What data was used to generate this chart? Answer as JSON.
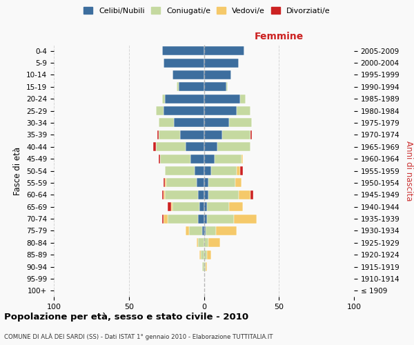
{
  "age_groups": [
    "100+",
    "95-99",
    "90-94",
    "85-89",
    "80-84",
    "75-79",
    "70-74",
    "65-69",
    "60-64",
    "55-59",
    "50-54",
    "45-49",
    "40-44",
    "35-39",
    "30-34",
    "25-29",
    "20-24",
    "15-19",
    "10-14",
    "5-9",
    "0-4"
  ],
  "birth_years": [
    "≤ 1909",
    "1910-1914",
    "1915-1919",
    "1920-1924",
    "1925-1929",
    "1930-1934",
    "1935-1939",
    "1940-1944",
    "1945-1949",
    "1950-1954",
    "1955-1959",
    "1960-1964",
    "1965-1969",
    "1970-1974",
    "1975-1979",
    "1980-1984",
    "1985-1989",
    "1990-1994",
    "1995-1999",
    "2000-2004",
    "2005-2009"
  ],
  "colors": {
    "celibi": "#3d6e9e",
    "coniugati": "#c5d9a0",
    "vedovi": "#f5c96a",
    "divorziati": "#cc2222"
  },
  "males": {
    "celibi": [
      0,
      0,
      0,
      0,
      0,
      1,
      4,
      3,
      4,
      5,
      6,
      9,
      12,
      16,
      20,
      27,
      26,
      17,
      21,
      27,
      28
    ],
    "coniugati": [
      0,
      0,
      1,
      2,
      4,
      9,
      20,
      18,
      22,
      20,
      20,
      20,
      20,
      14,
      10,
      5,
      2,
      1,
      0,
      0,
      0
    ],
    "vedovi": [
      0,
      0,
      0,
      1,
      1,
      2,
      3,
      1,
      1,
      1,
      0,
      0,
      0,
      0,
      0,
      0,
      0,
      0,
      0,
      0,
      0
    ],
    "divorziati": [
      0,
      0,
      0,
      0,
      0,
      0,
      1,
      2,
      1,
      1,
      0,
      1,
      2,
      1,
      0,
      0,
      0,
      0,
      0,
      0,
      0
    ]
  },
  "females": {
    "celibi": [
      0,
      0,
      0,
      0,
      0,
      1,
      2,
      2,
      3,
      3,
      5,
      7,
      9,
      12,
      17,
      22,
      24,
      15,
      18,
      23,
      27
    ],
    "coniugati": [
      0,
      0,
      1,
      2,
      3,
      7,
      18,
      15,
      20,
      18,
      17,
      18,
      22,
      19,
      15,
      9,
      4,
      1,
      0,
      0,
      0
    ],
    "vedovi": [
      0,
      0,
      1,
      3,
      8,
      14,
      15,
      9,
      8,
      4,
      2,
      1,
      0,
      0,
      0,
      0,
      0,
      0,
      0,
      0,
      0
    ],
    "divorziati": [
      0,
      0,
      0,
      0,
      0,
      0,
      0,
      0,
      2,
      0,
      2,
      0,
      0,
      1,
      0,
      0,
      0,
      0,
      0,
      0,
      0
    ]
  },
  "title": "Popolazione per età, sesso e stato civile - 2010",
  "subtitle": "COMUNE DI ALÀ DEI SARDI (SS) - Dati ISTAT 1° gennaio 2010 - Elaborazione TUTTITALIA.IT",
  "xlabel_right": "Femmine",
  "ylabel_left": "Fasce di età",
  "ylabel_right": "Anni di nascita",
  "xlim": 100,
  "background_color": "#f9f9f9",
  "grid_color": "#cccccc"
}
